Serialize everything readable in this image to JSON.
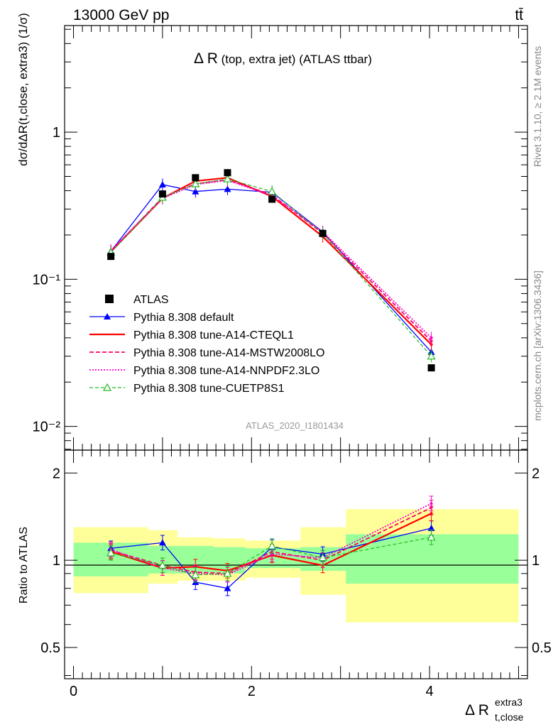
{
  "header": {
    "energy_label": "13000 GeV pp",
    "process_label": "tt̄"
  },
  "side_labels": {
    "rivet": "Rivet 3.1.10, ≥ 2.1M events",
    "mcplots": "mcplots.cern.ch [arXiv:1306.3436]"
  },
  "main_panel": {
    "title_main": "Δ R",
    "title_sub": " (top, extra jet) (ATLAS ttbar)",
    "analysis_id": "ATLAS_2020_I1801434",
    "ylabel": "dσ/dΔR(t,close, extra3) (1/σ)",
    "yticks": [
      {
        "label": "1",
        "value": 1
      },
      {
        "label": "10⁻¹",
        "value": 0.1
      },
      {
        "label": "10⁻²",
        "value": 0.01
      }
    ]
  },
  "ratio_panel": {
    "ylabel": "Ratio to ATLAS",
    "yticks": [
      {
        "label": "2",
        "value": 2
      },
      {
        "label": "1",
        "value": 1
      },
      {
        "label": "0.5",
        "value": 0.5
      }
    ]
  },
  "xaxis": {
    "label_main": "Δ R",
    "label_sup": "extra3",
    "label_sub": "t,close",
    "ticks": [
      {
        "label": "0",
        "value": 0
      },
      {
        "label": "2",
        "value": 2
      },
      {
        "label": "4",
        "value": 4
      }
    ]
  },
  "legend": [
    {
      "label": "ATLAS",
      "color": "#000000"
    },
    {
      "label": "Pythia 8.308 default",
      "color": "#0000ff"
    },
    {
      "label": "Pythia 8.308 tune-A14-CTEQL1",
      "color": "#ff0000"
    },
    {
      "label": "Pythia 8.308 tune-A14-MSTW2008LO",
      "color": "#ff0066"
    },
    {
      "label": "Pythia 8.308 tune-A14-NNPDF2.3LO",
      "color": "#ff00cc"
    },
    {
      "label": "Pythia 8.308 tune-CUETP8S1",
      "color": "#22bb22"
    }
  ],
  "chart_data": {
    "type": "line",
    "x_scale": "linear",
    "y_scale": "log",
    "xlim": [
      -0.1,
      5.1
    ],
    "ylim": [
      0.0069,
      5.3
    ],
    "ratio_ylim": [
      0.39,
      2.4
    ],
    "x": [
      0.42,
      1.0,
      1.37,
      1.73,
      2.23,
      2.8,
      4.02
    ],
    "bins": [
      [
        0,
        0.84
      ],
      [
        0.84,
        1.17
      ],
      [
        1.17,
        1.57
      ],
      [
        1.57,
        1.93
      ],
      [
        1.93,
        2.55
      ],
      [
        2.55,
        3.06
      ],
      [
        3.06,
        5.0
      ]
    ],
    "atlas": {
      "name": "ATLAS",
      "values": [
        0.143,
        0.38,
        0.49,
        0.53,
        0.35,
        0.205,
        0.025
      ],
      "stat_band": [
        [
          0.88,
          1.15
        ],
        [
          0.9,
          1.12
        ],
        [
          0.9,
          1.12
        ],
        [
          0.9,
          1.11
        ],
        [
          0.94,
          1.1
        ],
        [
          0.92,
          1.11
        ],
        [
          0.83,
          1.23
        ]
      ],
      "total_band": [
        [
          0.77,
          1.3
        ],
        [
          0.83,
          1.27
        ],
        [
          0.85,
          1.2
        ],
        [
          0.85,
          1.19
        ],
        [
          0.87,
          1.17
        ],
        [
          0.76,
          1.3
        ],
        [
          0.61,
          1.5
        ]
      ]
    },
    "series": [
      {
        "name": "Pythia 8.308 default",
        "color": "#0000ff",
        "values": [
          0.155,
          0.44,
          0.395,
          0.41,
          0.39,
          0.21,
          0.032
        ],
        "ratio": [
          1.1,
          1.15,
          0.84,
          0.8,
          1.11,
          1.05,
          1.29
        ]
      },
      {
        "name": "Pythia 8.308 tune-A14-CTEQL1",
        "color": "#ff0000",
        "values": [
          0.154,
          0.355,
          0.465,
          0.49,
          0.365,
          0.195,
          0.036
        ],
        "ratio": [
          1.07,
          0.94,
          0.95,
          0.92,
          1.04,
          0.96,
          1.45
        ]
      },
      {
        "name": "Pythia 8.308 tune-A14-MSTW2008LO",
        "color": "#ff0066",
        "values": [
          0.155,
          0.36,
          0.445,
          0.475,
          0.375,
          0.205,
          0.038
        ],
        "ratio": [
          1.08,
          0.96,
          0.91,
          0.9,
          1.07,
          1.0,
          1.52
        ]
      },
      {
        "name": "Pythia 8.308 tune-A14-NNPDF2.3LO",
        "color": "#ff00cc",
        "values": [
          0.157,
          0.355,
          0.44,
          0.47,
          0.37,
          0.21,
          0.04
        ],
        "ratio": [
          1.09,
          0.94,
          0.9,
          0.89,
          1.05,
          1.02,
          1.57
        ]
      },
      {
        "name": "Pythia 8.308 tune-CUETP8S1",
        "color": "#22bb22",
        "values": [
          0.152,
          0.36,
          0.445,
          0.48,
          0.395,
          0.205,
          0.03
        ],
        "ratio": [
          1.06,
          0.96,
          0.89,
          0.9,
          1.12,
          1.02,
          1.2
        ]
      }
    ]
  }
}
